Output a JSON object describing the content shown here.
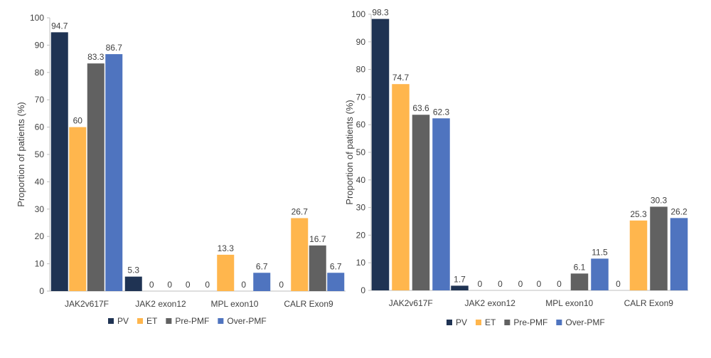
{
  "colors": {
    "PV": "#1f3353",
    "ET": "#ffb64d",
    "Pre-PMF": "#616161",
    "Over-PMF": "#4f74bf"
  },
  "chart_data": [
    {
      "type": "bar",
      "title": "",
      "xlabel": "",
      "ylabel": "Proportion of patients (%)",
      "ylim": [
        0,
        100
      ],
      "yticks": [
        0,
        10,
        20,
        30,
        40,
        50,
        60,
        70,
        80,
        90,
        100
      ],
      "grid": false,
      "legend_position": "bottom",
      "categories": [
        "JAK2v617F",
        "JAK2 exon12",
        "MPL exon10",
        "CALR Exon9"
      ],
      "series": [
        {
          "name": "PV",
          "values": [
            94.7,
            5.3,
            0,
            0
          ],
          "labels": [
            "94.7",
            "5.3",
            "0",
            "0"
          ]
        },
        {
          "name": "ET",
          "values": [
            60,
            0,
            13.3,
            26.7
          ],
          "labels": [
            "60",
            "0",
            "13.3",
            "26.7"
          ]
        },
        {
          "name": "Pre-PMF",
          "values": [
            83.3,
            0,
            0,
            16.7
          ],
          "labels": [
            "83.3",
            "0",
            "0",
            "16.7"
          ]
        },
        {
          "name": "Over-PMF",
          "values": [
            86.7,
            0,
            6.7,
            6.7
          ],
          "labels": [
            "86.7",
            "0",
            "6.7",
            "6.7"
          ]
        }
      ]
    },
    {
      "type": "bar",
      "title": "",
      "xlabel": "",
      "ylabel": "Proportion of patients (%)",
      "ylim": [
        0,
        100
      ],
      "yticks": [
        0,
        10,
        20,
        30,
        40,
        50,
        60,
        70,
        80,
        90,
        100
      ],
      "grid": false,
      "legend_position": "bottom",
      "categories": [
        "JAK2v617F",
        "JAK2 exon12",
        "MPL exon10",
        "CALR Exon9"
      ],
      "series": [
        {
          "name": "PV",
          "values": [
            98.3,
            1.7,
            0,
            0
          ],
          "labels": [
            "98.3",
            "1.7",
            "0",
            "0"
          ]
        },
        {
          "name": "ET",
          "values": [
            74.7,
            0,
            0,
            25.3
          ],
          "labels": [
            "74.7",
            "0",
            "0",
            "25.3"
          ]
        },
        {
          "name": "Pre-PMF",
          "values": [
            63.6,
            0,
            6.1,
            30.3
          ],
          "labels": [
            "63.6",
            "0",
            "6.1",
            "30.3"
          ]
        },
        {
          "name": "Over-PMF",
          "values": [
            62.3,
            0,
            11.5,
            26.2
          ],
          "labels": [
            "62.3",
            "0",
            "11.5",
            "26.2"
          ]
        }
      ]
    }
  ]
}
